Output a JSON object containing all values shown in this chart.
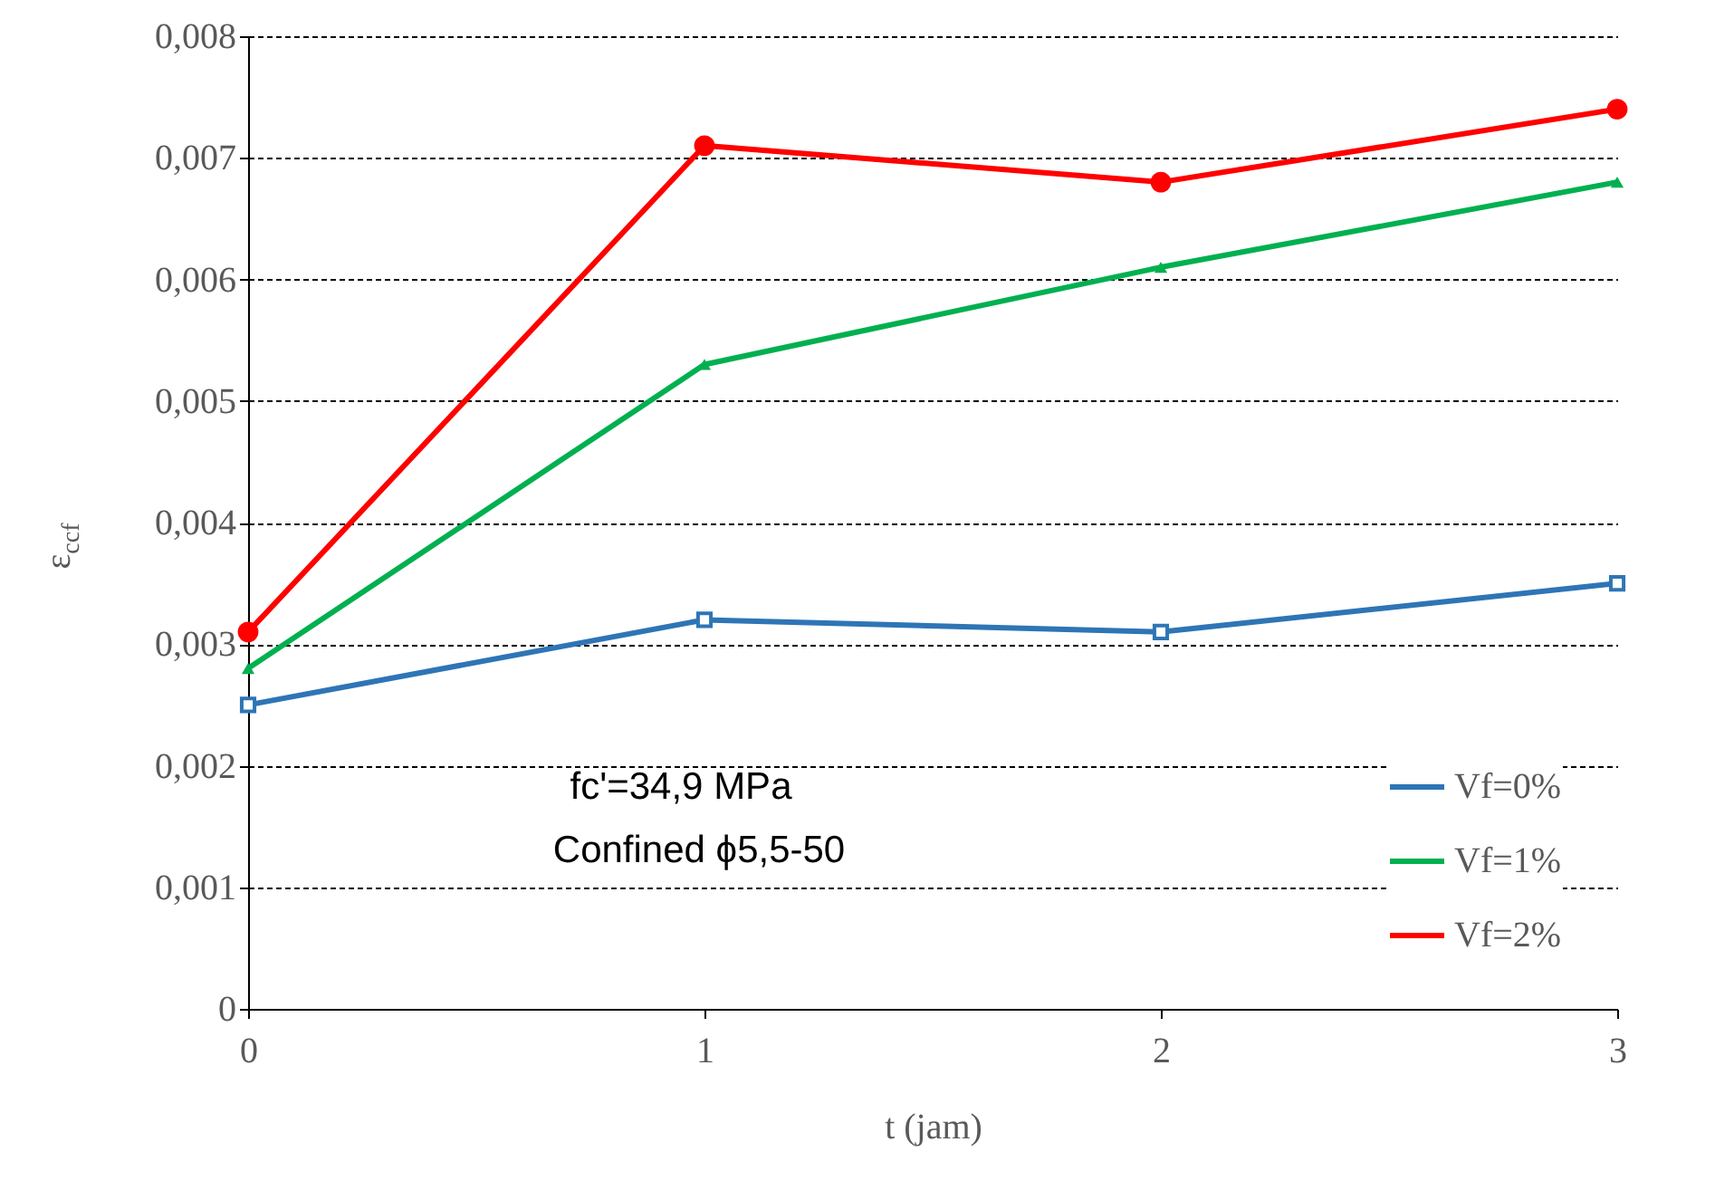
{
  "chart_data": {
    "type": "line",
    "xlabel": "t (jam)",
    "ylabel": "ε$_{ccf}$",
    "x": [
      0,
      1,
      2,
      3
    ],
    "series": [
      {
        "name": "Vf=0%",
        "color": "#2e75b6",
        "marker": "square",
        "values": [
          0.0025,
          0.0032,
          0.0031,
          0.0035
        ]
      },
      {
        "name": "Vf=1%",
        "color": "#00b050",
        "marker": "triangle",
        "values": [
          0.0028,
          0.0053,
          0.0061,
          0.0068
        ]
      },
      {
        "name": "Vf=2%",
        "color": "#ff0000",
        "marker": "circle",
        "values": [
          0.0031,
          0.0071,
          0.0068,
          0.0074
        ]
      }
    ],
    "xlim": [
      0,
      3
    ],
    "xticks": [
      0,
      1,
      2,
      3
    ],
    "ylim": [
      0,
      0.008
    ],
    "yticks": [
      0,
      {
        "value": 0.001,
        "label": "0,001"
      },
      {
        "value": 0.002,
        "label": "0,002"
      },
      {
        "value": 0.003,
        "label": "0,003"
      },
      {
        "value": 0.004,
        "label": "0,004"
      },
      {
        "value": 0.005,
        "label": "0,005"
      },
      {
        "value": 0.006,
        "label": "0,006"
      },
      {
        "value": 0.007,
        "label": "0,007"
      },
      {
        "value": 0.008,
        "label": "0,008"
      }
    ],
    "grid": "y",
    "legend": "bottom right",
    "line_style": "solid",
    "annotations": [
      "fc'=34,9 MPa",
      "Confined ϕ5,5-50"
    ]
  }
}
